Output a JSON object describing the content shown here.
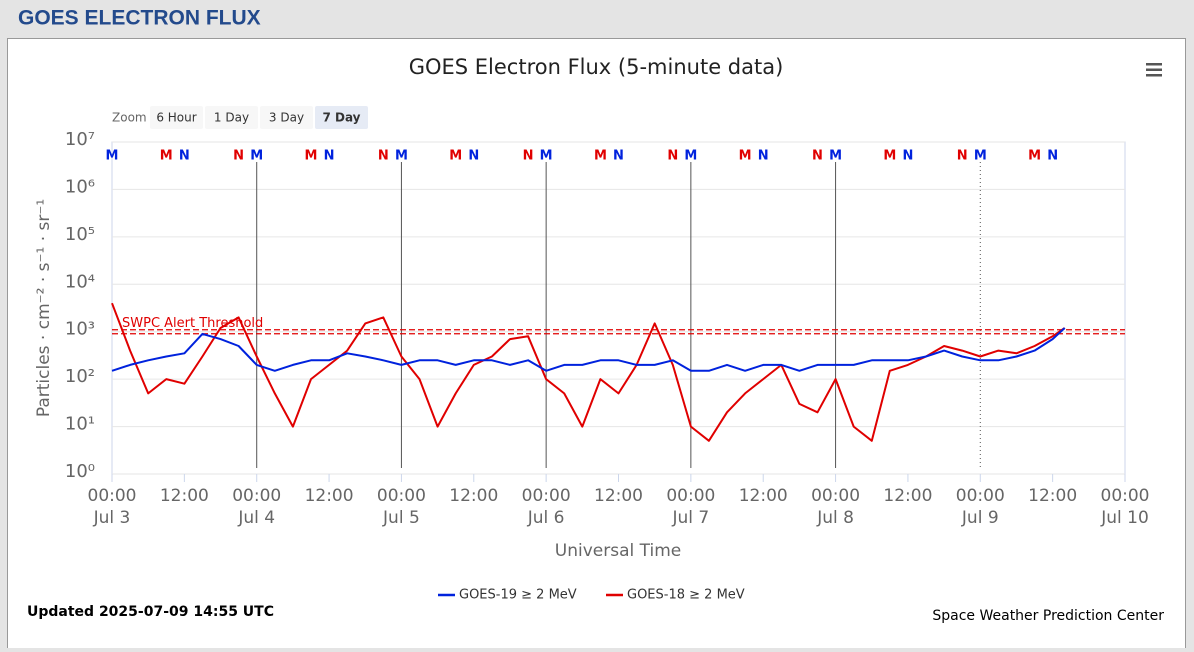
{
  "header": {
    "title": "GOES ELECTRON FLUX"
  },
  "zoom": {
    "label": "Zoom",
    "options": [
      "6 Hour",
      "1 Day",
      "3 Day",
      "7 Day"
    ],
    "selected": "7 Day"
  },
  "footer": {
    "updated": "Updated 2025-07-09 14:55 UTC",
    "credit": "Space Weather Prediction Center"
  },
  "chart_data": {
    "type": "line",
    "title": "GOES Electron Flux (5-minute data)",
    "x_label": "Universal Time",
    "y_label": "Particles · cm⁻² · s⁻¹ · sr⁻¹",
    "log_y": true,
    "grid": true,
    "xlim": [
      0,
      168
    ],
    "xticks": [
      {
        "value": 0,
        "label": "00:00",
        "sublabel": "Jul 3"
      },
      {
        "value": 12,
        "label": "12:00"
      },
      {
        "value": 24,
        "label": "00:00",
        "sublabel": "Jul 4"
      },
      {
        "value": 36,
        "label": "12:00"
      },
      {
        "value": 48,
        "label": "00:00",
        "sublabel": "Jul 5"
      },
      {
        "value": 60,
        "label": "12:00"
      },
      {
        "value": 72,
        "label": "00:00",
        "sublabel": "Jul 6"
      },
      {
        "value": 84,
        "label": "12:00"
      },
      {
        "value": 96,
        "label": "00:00",
        "sublabel": "Jul 7"
      },
      {
        "value": 108,
        "label": "12:00"
      },
      {
        "value": 120,
        "label": "00:00",
        "sublabel": "Jul 8"
      },
      {
        "value": 132,
        "label": "12:00"
      },
      {
        "value": 144,
        "label": "00:00",
        "sublabel": "Jul 9"
      },
      {
        "value": 156,
        "label": "12:00"
      },
      {
        "value": 168,
        "label": "00:00",
        "sublabel": "Jul 10"
      }
    ],
    "ylim": [
      1,
      10000000
    ],
    "yticks": [
      {
        "value": 1,
        "label": "10⁰"
      },
      {
        "value": 10,
        "label": "10¹"
      },
      {
        "value": 100,
        "label": "10²"
      },
      {
        "value": 1000,
        "label": "10³"
      },
      {
        "value": 10000,
        "label": "10⁴"
      },
      {
        "value": 100000,
        "label": "10⁵"
      },
      {
        "value": 1000000,
        "label": "10⁶"
      },
      {
        "value": 10000000,
        "label": "10⁷"
      }
    ],
    "threshold": {
      "value": 1000,
      "label": "SWPC Alert Threshold",
      "color": "#e00000"
    },
    "x": [
      0,
      3,
      6,
      9,
      12,
      15,
      18,
      21,
      24,
      27,
      30,
      33,
      36,
      39,
      42,
      45,
      48,
      51,
      54,
      57,
      60,
      63,
      66,
      69,
      72,
      75,
      78,
      81,
      84,
      87,
      90,
      93,
      96,
      99,
      102,
      105,
      108,
      111,
      114,
      117,
      120,
      123,
      126,
      129,
      132,
      135,
      138,
      141,
      144,
      147,
      150,
      153,
      156,
      158
    ],
    "series": [
      {
        "name": "GOES-19 ≥ 2 MeV",
        "color": "#0022dd",
        "values": [
          150,
          200,
          250,
          300,
          350,
          900,
          700,
          500,
          200,
          150,
          200,
          250,
          250,
          350,
          300,
          250,
          200,
          250,
          250,
          200,
          250,
          250,
          200,
          250,
          150,
          200,
          200,
          250,
          250,
          200,
          200,
          250,
          150,
          150,
          200,
          150,
          200,
          200,
          150,
          200,
          200,
          200,
          250,
          250,
          250,
          300,
          400,
          300,
          250,
          250,
          300,
          400,
          700,
          1200
        ]
      },
      {
        "name": "GOES-18 ≥ 2 MeV",
        "color": "#e00000",
        "values": [
          4000,
          400,
          50,
          100,
          80,
          300,
          1200,
          2000,
          300,
          50,
          10,
          100,
          200,
          400,
          1500,
          2000,
          300,
          100,
          10,
          50,
          200,
          300,
          700,
          800,
          100,
          50,
          10,
          100,
          50,
          200,
          1500,
          200,
          10,
          5,
          20,
          50,
          100,
          200,
          30,
          20,
          100,
          10,
          5,
          150,
          200,
          300,
          500,
          400,
          300,
          400,
          350,
          500,
          800,
          1200
        ]
      }
    ],
    "markers": [
      {
        "text": "M",
        "x": 0,
        "color": "#0022dd"
      },
      {
        "text": "M",
        "x": 9,
        "color": "#e00000"
      },
      {
        "text": "N",
        "x": 12,
        "color": "#0022dd"
      },
      {
        "text": "N",
        "x": 21,
        "color": "#e00000"
      },
      {
        "text": "M",
        "x": 24,
        "color": "#0022dd"
      },
      {
        "text": "M",
        "x": 33,
        "color": "#e00000"
      },
      {
        "text": "N",
        "x": 36,
        "color": "#0022dd"
      },
      {
        "text": "N",
        "x": 45,
        "color": "#e00000"
      },
      {
        "text": "M",
        "x": 48,
        "color": "#0022dd"
      },
      {
        "text": "M",
        "x": 57,
        "color": "#e00000"
      },
      {
        "text": "N",
        "x": 60,
        "color": "#0022dd"
      },
      {
        "text": "N",
        "x": 69,
        "color": "#e00000"
      },
      {
        "text": "M",
        "x": 72,
        "color": "#0022dd"
      },
      {
        "text": "M",
        "x": 81,
        "color": "#e00000"
      },
      {
        "text": "N",
        "x": 84,
        "color": "#0022dd"
      },
      {
        "text": "N",
        "x": 93,
        "color": "#e00000"
      },
      {
        "text": "M",
        "x": 96,
        "color": "#0022dd"
      },
      {
        "text": "M",
        "x": 105,
        "color": "#e00000"
      },
      {
        "text": "N",
        "x": 108,
        "color": "#0022dd"
      },
      {
        "text": "N",
        "x": 117,
        "color": "#e00000"
      },
      {
        "text": "M",
        "x": 120,
        "color": "#0022dd"
      },
      {
        "text": "M",
        "x": 129,
        "color": "#e00000"
      },
      {
        "text": "N",
        "x": 132,
        "color": "#0022dd"
      },
      {
        "text": "N",
        "x": 141,
        "color": "#e00000"
      },
      {
        "text": "M",
        "x": 144,
        "color": "#0022dd"
      },
      {
        "text": "M",
        "x": 153,
        "color": "#e00000"
      },
      {
        "text": "N",
        "x": 156,
        "color": "#0022dd"
      }
    ]
  }
}
